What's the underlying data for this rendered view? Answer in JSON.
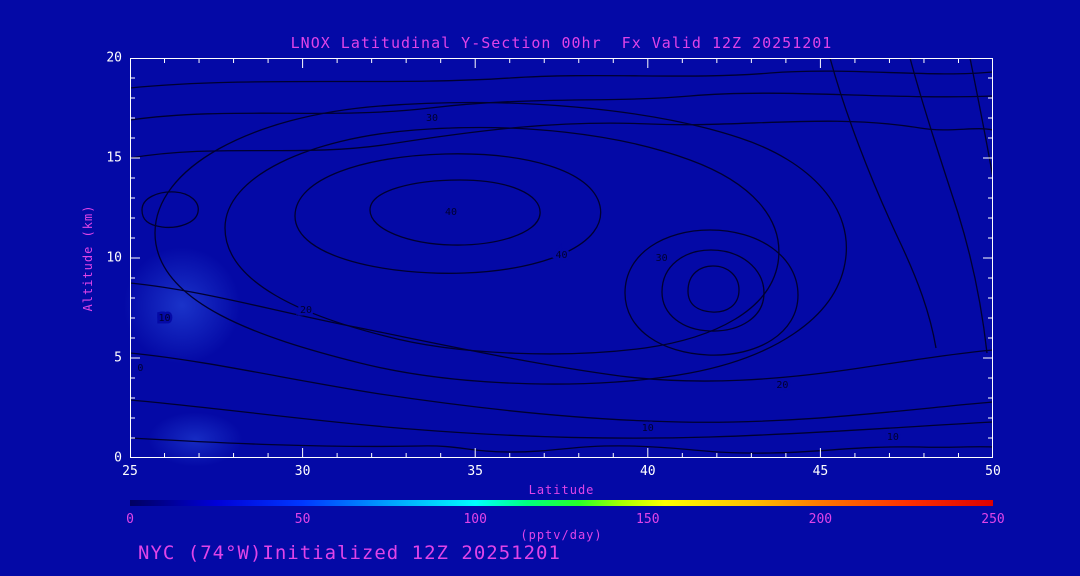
{
  "header": {
    "title": "LNOX Latitudinal Y-Section 00hr  Fx Valid 12Z 20251201"
  },
  "footer": {
    "text": "NYC (74°W)Initialized 12Z 20251201"
  },
  "colors": {
    "background": "#0409A6",
    "contour_line": "#000030",
    "magenta_text": "#E044E8",
    "white_text": "#FFFFFF"
  },
  "chart_data": {
    "type": "contour",
    "title": "LNOX Latitudinal Y-Section 00hr  Fx Valid 12Z 20251201",
    "xlabel": "Latitude",
    "ylabel": "Altitude (km)",
    "xlim": [
      25,
      50
    ],
    "ylim": [
      0,
      20
    ],
    "x_ticks": [
      25,
      30,
      35,
      40,
      45,
      50
    ],
    "y_ticks": [
      0,
      5,
      10,
      15,
      20
    ],
    "x_minor_step": 1,
    "y_minor_step": 1,
    "contour_levels": [
      0,
      10,
      20,
      30,
      40,
      50
    ],
    "contour_labels": [
      {
        "lat": 33.75,
        "alt": 17.0,
        "text": "30"
      },
      {
        "lat": 34.3,
        "alt": 12.3,
        "text": "40"
      },
      {
        "lat": 37.5,
        "alt": 10.15,
        "text": "40"
      },
      {
        "lat": 40.4,
        "alt": 10.0,
        "text": "30"
      },
      {
        "lat": 30.1,
        "alt": 7.4,
        "text": "20"
      },
      {
        "lat": 26.0,
        "alt": 7.0,
        "text": "10"
      },
      {
        "lat": 25.3,
        "alt": 4.5,
        "text": "0"
      },
      {
        "lat": 43.9,
        "alt": 3.65,
        "text": "20"
      },
      {
        "lat": 40.0,
        "alt": 1.5,
        "text": "10"
      },
      {
        "lat": 47.1,
        "alt": 1.05,
        "text": "10"
      }
    ],
    "colorbar": {
      "min": 0,
      "max": 250,
      "ticks": [
        0,
        50,
        100,
        150,
        200,
        250
      ],
      "label": "(pptv/day)"
    }
  }
}
